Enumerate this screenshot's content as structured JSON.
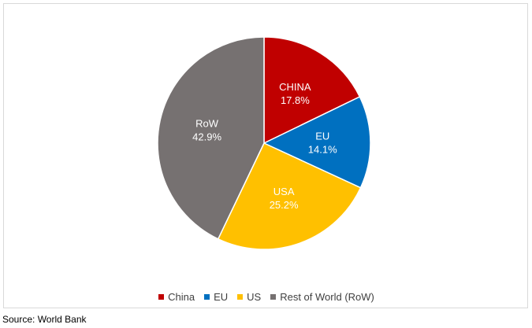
{
  "chart_data": {
    "type": "pie",
    "title": "",
    "slices": [
      {
        "key": "china",
        "label": "CHINA",
        "value": 17.8,
        "value_text": "17.8%",
        "color": "#c00000"
      },
      {
        "key": "eu",
        "label": "EU",
        "value": 14.1,
        "value_text": "14.1%",
        "color": "#0070c0"
      },
      {
        "key": "usa",
        "label": "USA",
        "value": 25.2,
        "value_text": "25.2%",
        "color": "#ffc000"
      },
      {
        "key": "row",
        "label": "RoW",
        "value": 42.9,
        "value_text": "42.9%",
        "color": "#767171"
      }
    ],
    "start_angle_deg": 0,
    "direction": "clockwise",
    "legend_position": "bottom",
    "legend": [
      {
        "label": "China",
        "color": "#c00000"
      },
      {
        "label": "EU",
        "color": "#0070c0"
      },
      {
        "label": "US",
        "color": "#ffc000"
      },
      {
        "label": "Rest of World (RoW)",
        "color": "#767171"
      }
    ]
  },
  "source": "Source: World Bank"
}
